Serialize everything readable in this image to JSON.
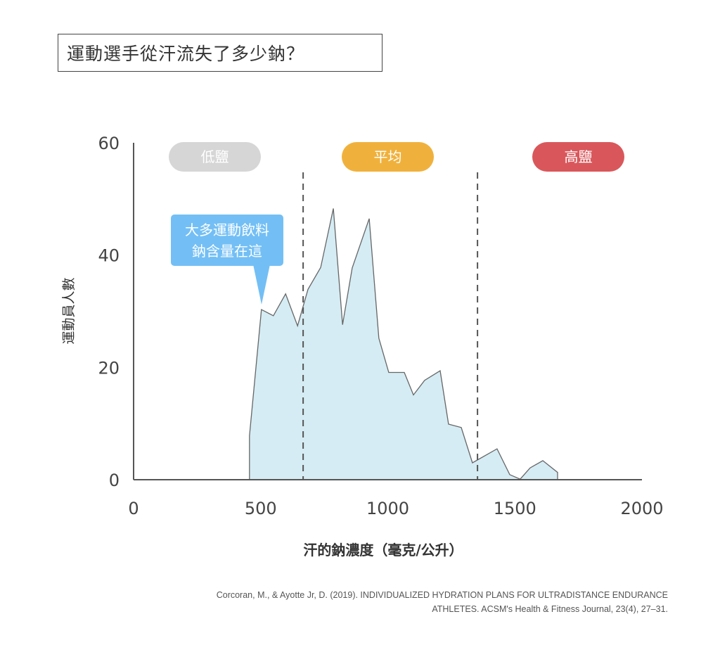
{
  "title": "運動選手從汗流失了多少鈉？",
  "citation": {
    "line1": "Corcoran, M., & Ayotte Jr, D. (2019). INDIVIDUALIZED HYDRATION PLANS FOR ULTRADISTANCE ENDURANCE",
    "line2": "ATHLETES. ACSM's Health & Fitness Journal, 23(4), 27–31."
  },
  "chart_data": {
    "type": "area",
    "title": "運動選手從汗流失了多少鈉？",
    "xlabel": "汗的鈉濃度（毫克/公升）",
    "ylabel": "運動員人數",
    "xlim": [
      0,
      2000
    ],
    "ylim": [
      0,
      60
    ],
    "xticks": [
      "0",
      "500",
      "1000",
      "1500",
      "2000"
    ],
    "yticks": [
      "0",
      "20",
      "40",
      "60"
    ],
    "grid": false,
    "fill_color": "#d5ecf4",
    "line_color": "#666666",
    "x": [
      456,
      456,
      503,
      550,
      598,
      645,
      686,
      736,
      786,
      822,
      860,
      927,
      965,
      1004,
      1065,
      1101,
      1145,
      1206,
      1239,
      1289,
      1333,
      1430,
      1480,
      1521,
      1560,
      1610,
      1668,
      1668
    ],
    "y": [
      0,
      7.8,
      30.3,
      29.2,
      33.1,
      27.4,
      33.9,
      37.8,
      48.3,
      27.6,
      37.7,
      46.5,
      25.2,
      19.1,
      19.1,
      15.1,
      17.7,
      19.4,
      9.9,
      9.3,
      3.0,
      5.5,
      0.9,
      0.1,
      2.1,
      3.4,
      1.3,
      0
    ],
    "thresholds": [
      667,
      1353
    ],
    "zones": [
      {
        "label": "低鹽",
        "color": "#d6d6d6"
      },
      {
        "label": "平均",
        "color": "#f0b13c"
      },
      {
        "label": "高鹽",
        "color": "#d9575b"
      }
    ],
    "annotation": {
      "line1": "大多運動飲料",
      "line2": "鈉含量在這",
      "color": "#73bff5"
    }
  }
}
